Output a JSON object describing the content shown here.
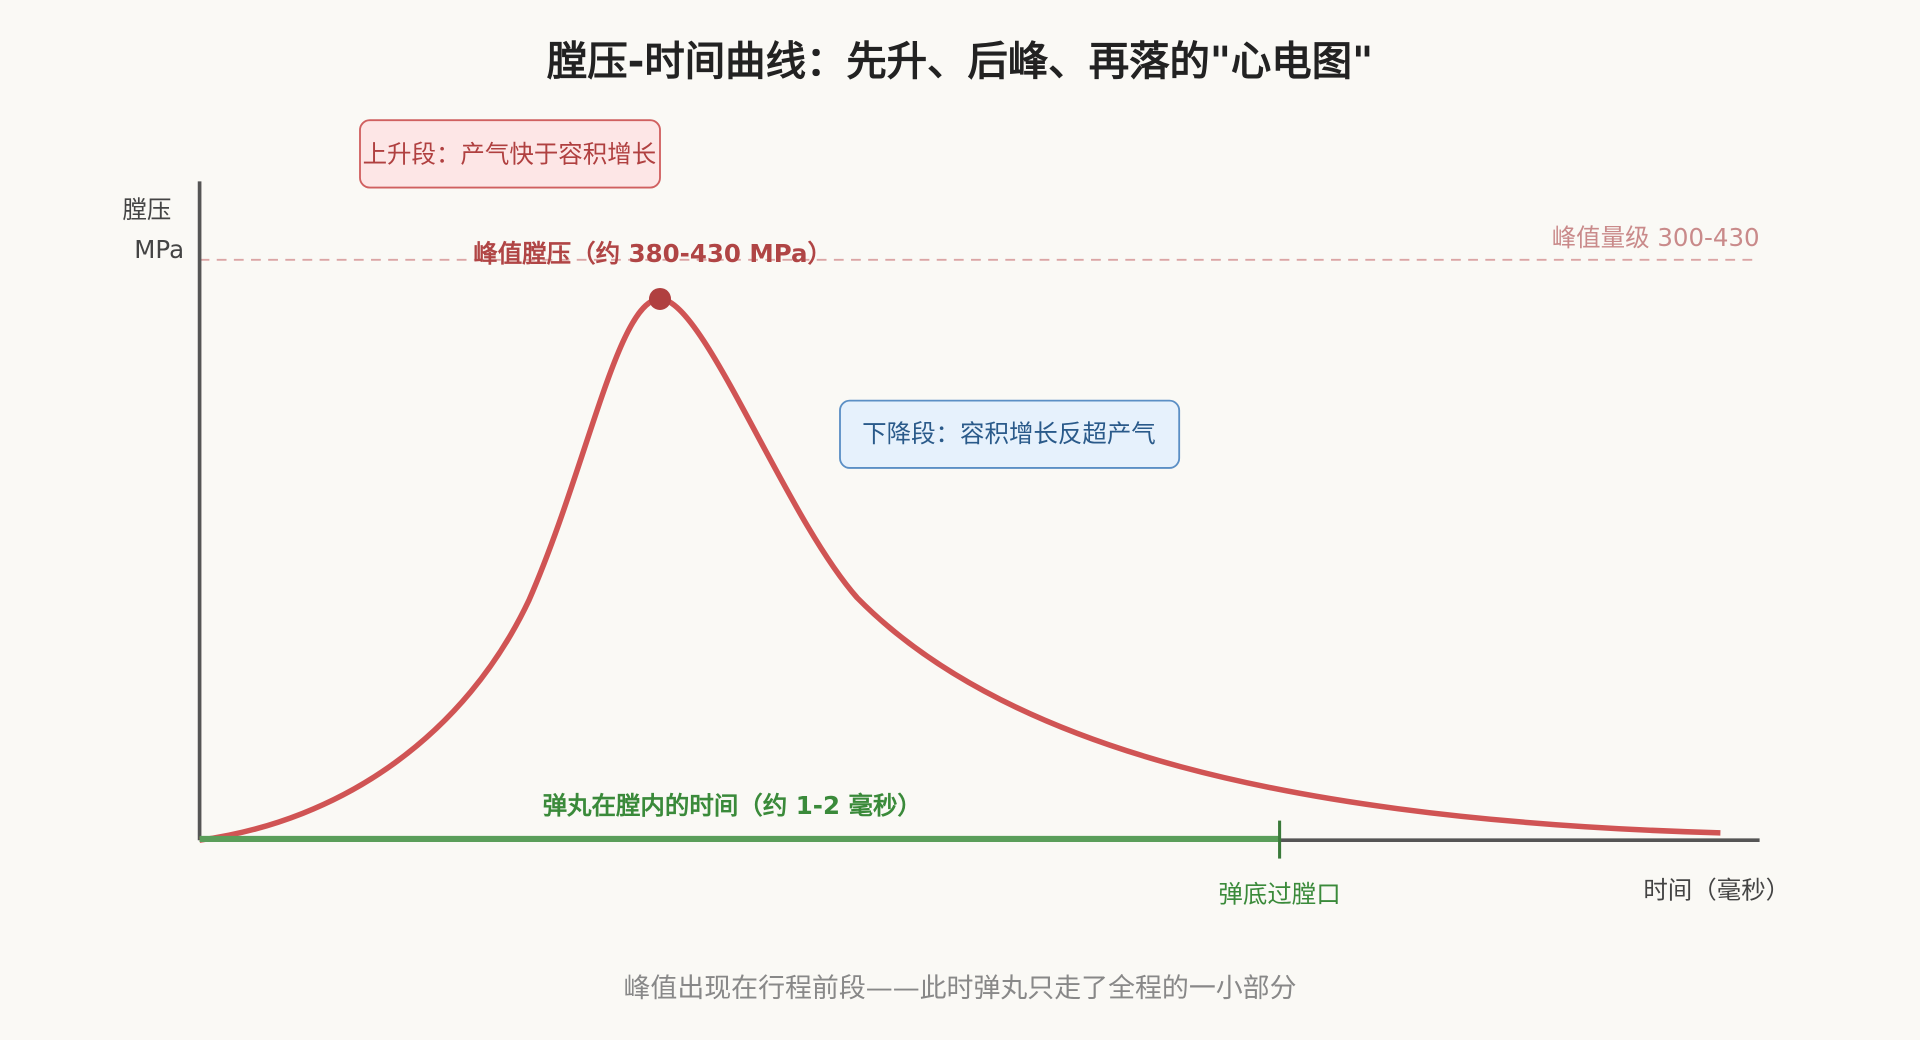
{
  "title": "膛压-时间曲线：先升、后峰、再落的\"心电图\"",
  "y_axis": {
    "label_lines": [
      "膛压",
      "MPa"
    ]
  },
  "x_axis": {
    "label": "时间（毫秒）"
  },
  "annotations": {
    "rise": "上升段：产气快于容积增长",
    "fall": "下降段：容积增长反超产气",
    "peak": "峰值膛压（约 380-430 MPa）",
    "reference": "峰值量级 300-430",
    "in_bore": "弹丸在膛内的时间（约 1-2 毫秒）",
    "muzzle": "弹底过膛口"
  },
  "caption": "峰值出现在行程前段——此时弹丸只走了全程的一小部分"
}
